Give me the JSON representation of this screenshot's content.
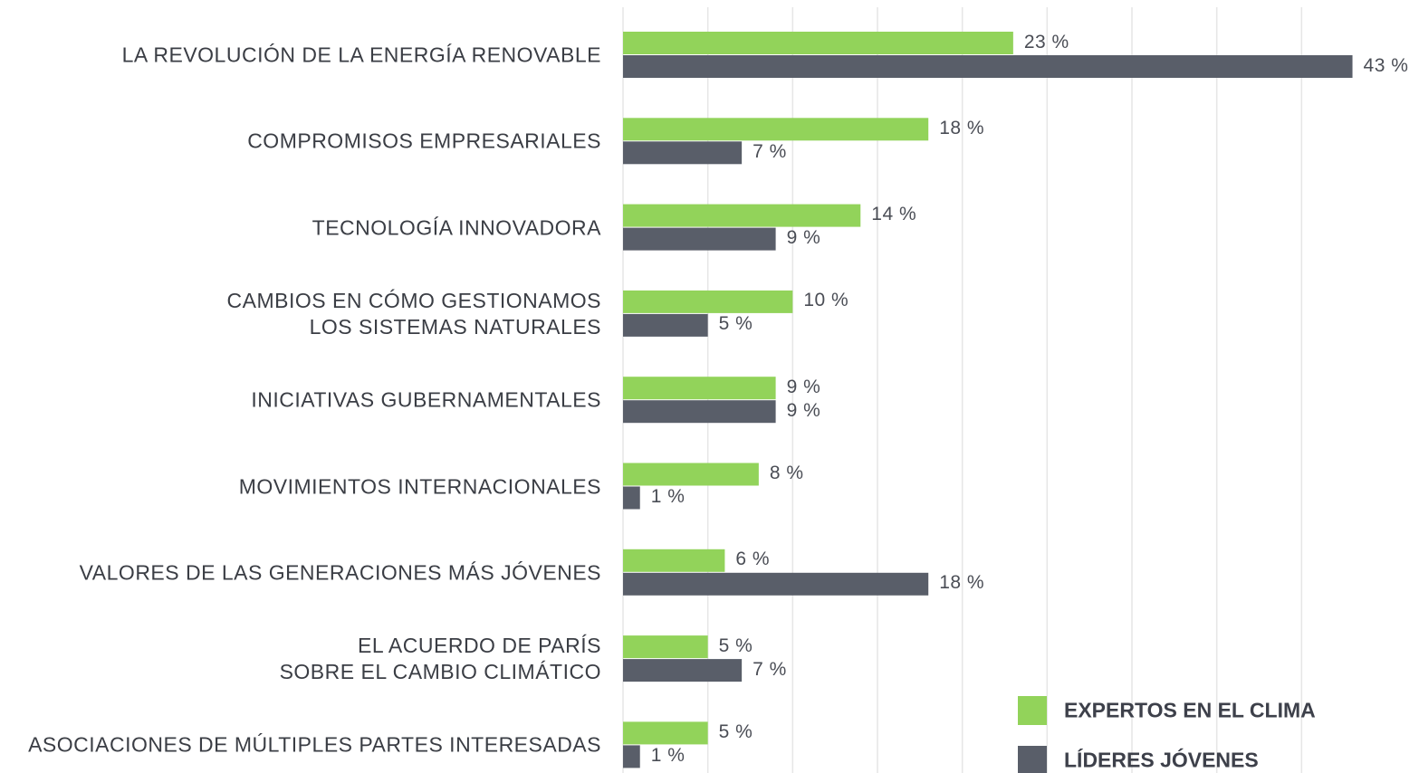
{
  "chart_data": {
    "type": "hbar",
    "categories": [
      "LA REVOLUCIÓN DE LA ENERGÍA RENOVABLE",
      "COMPROMISOS EMPRESARIALES",
      "TECNOLOGÍA INNOVADORA",
      "CAMBIOS EN CÓMO GESTIONAMOS\nLOS SISTEMAS NATURALES",
      "INICIATIVAS GUBERNAMENTALES",
      "MOVIMIENTOS INTERNACIONALES",
      "VALORES DE LAS GENERACIONES MÁS JÓVENES",
      "EL ACUERDO DE PARÍS\nSOBRE EL CAMBIO CLIMÁTICO",
      "ASOCIACIONES DE MÚLTIPLES PARTES INTERESADAS"
    ],
    "series": [
      {
        "name": "EXPERTOS EN EL CLIMA",
        "color": "#92d35a",
        "values": [
          23,
          18,
          14,
          10,
          9,
          8,
          6,
          5,
          5
        ],
        "value_labels": [
          "23 %",
          "18 %",
          "14 %",
          "10 %",
          "9 %",
          "8 %",
          "6 %",
          "5 %",
          "5 %"
        ]
      },
      {
        "name": "LÍDERES JÓVENES",
        "color": "#595e69",
        "values": [
          43,
          7,
          9,
          5,
          9,
          1,
          18,
          7,
          1
        ],
        "value_labels": [
          "43 %",
          "7 %",
          "9 %",
          "5 %",
          "9 %",
          "1 %",
          "18 %",
          "7 %",
          "1 %"
        ]
      }
    ],
    "xlim": [
      0,
      45
    ],
    "xticks": [
      0,
      5,
      10,
      15,
      20,
      25,
      30,
      35,
      40
    ],
    "grid": true
  }
}
